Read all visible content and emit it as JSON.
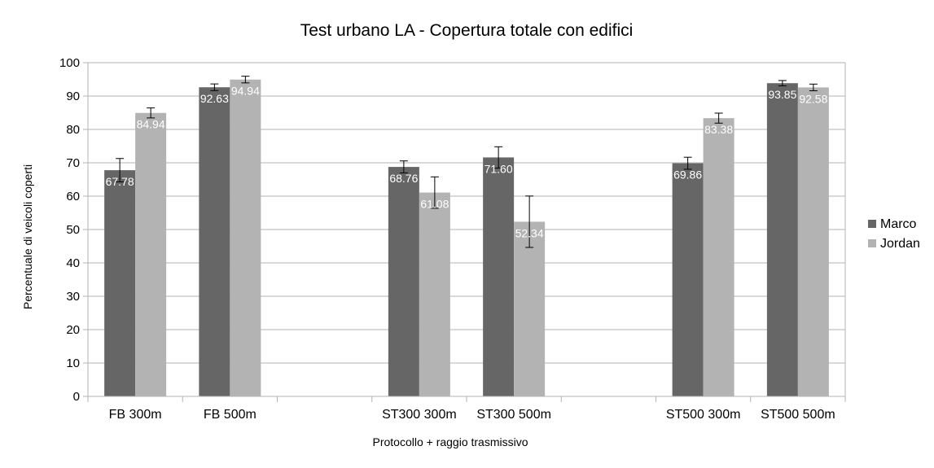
{
  "chart_data": {
    "type": "bar",
    "title": "Test urbano LA - Copertura totale con edifici",
    "xlabel": "Protocollo + raggio trasmissivo",
    "ylabel": "Percentuale di veicoli coperti",
    "ylim": [
      0,
      100
    ],
    "yticks": [
      "0",
      "10",
      "20",
      "30",
      "40",
      "50",
      "60",
      "70",
      "80",
      "90",
      "100"
    ],
    "grid": true,
    "legend_position": "right",
    "categories": [
      "FB 300m",
      "FB 500m",
      "",
      "ST300 300m",
      "ST300 500m",
      "",
      "ST500 300m",
      "ST500 500m"
    ],
    "series": [
      {
        "name": "Marco",
        "color": "#666666",
        "values": [
          67.78,
          92.63,
          null,
          68.76,
          71.6,
          null,
          69.86,
          93.85
        ],
        "labels": [
          "67.78",
          "92.63",
          "",
          "68.76",
          "71.60",
          "",
          "69.86",
          "93.85"
        ],
        "error": [
          3.5,
          1.0,
          null,
          1.8,
          3.2,
          null,
          1.8,
          0.8
        ]
      },
      {
        "name": "Jordan",
        "color": "#b3b3b3",
        "values": [
          84.94,
          94.94,
          null,
          61.08,
          52.34,
          null,
          83.38,
          92.58
        ],
        "labels": [
          "84.94",
          "94.94",
          "",
          "61.08",
          "52.34",
          "",
          "83.38",
          "92.58"
        ],
        "error": [
          1.5,
          1.0,
          null,
          4.7,
          7.7,
          null,
          1.5,
          1.0
        ]
      }
    ]
  }
}
